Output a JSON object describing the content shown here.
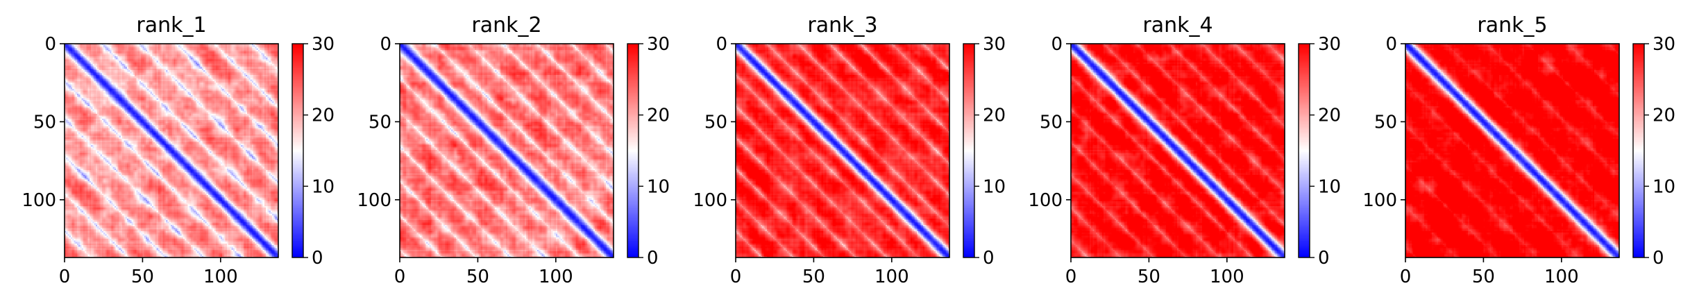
{
  "figure": {
    "background": "#ffffff"
  },
  "chart_data": [
    {
      "type": "heatmap",
      "title": "rank_1",
      "n": 137,
      "x_ticks": [
        0,
        50,
        100
      ],
      "y_ticks": [
        0,
        50,
        100
      ],
      "colorbar": {
        "range": [
          0,
          30
        ],
        "ticks": [
          0,
          10,
          20,
          30
        ],
        "colormap": "bwr"
      },
      "pattern": {
        "diag_width": 3.5,
        "band_spacing": 24,
        "band_strength": 0.55,
        "base": 22,
        "texture": 3.5
      }
    },
    {
      "type": "heatmap",
      "title": "rank_2",
      "n": 137,
      "x_ticks": [
        0,
        50,
        100
      ],
      "y_ticks": [
        0,
        50,
        100
      ],
      "colorbar": {
        "range": [
          0,
          30
        ],
        "ticks": [
          0,
          10,
          20,
          30
        ],
        "colormap": "bwr"
      },
      "pattern": {
        "diag_width": 4,
        "band_spacing": 22,
        "band_strength": 0.5,
        "base": 24,
        "texture": 3.5
      }
    },
    {
      "type": "heatmap",
      "title": "rank_3",
      "n": 137,
      "x_ticks": [
        0,
        50,
        100
      ],
      "y_ticks": [
        0,
        50,
        100
      ],
      "colorbar": {
        "range": [
          0,
          30
        ],
        "ticks": [
          0,
          10,
          20,
          30
        ],
        "colormap": "bwr"
      },
      "pattern": {
        "diag_width": 4,
        "band_spacing": 20,
        "band_strength": 0.45,
        "base": 29,
        "texture": 2.5
      }
    },
    {
      "type": "heatmap",
      "title": "rank_4",
      "n": 137,
      "x_ticks": [
        0,
        50,
        100
      ],
      "y_ticks": [
        0,
        50,
        100
      ],
      "colorbar": {
        "range": [
          0,
          30
        ],
        "ticks": [
          0,
          10,
          20,
          30
        ],
        "colormap": "bwr"
      },
      "pattern": {
        "diag_width": 4,
        "band_spacing": 21,
        "band_strength": 0.35,
        "base": 30,
        "texture": 2.5
      }
    },
    {
      "type": "heatmap",
      "title": "rank_5",
      "n": 137,
      "x_ticks": [
        0,
        50,
        100
      ],
      "y_ticks": [
        0,
        50,
        100
      ],
      "colorbar": {
        "range": [
          0,
          30
        ],
        "ticks": [
          0,
          10,
          20,
          30
        ],
        "colormap": "bwr"
      },
      "pattern": {
        "diag_width": 4,
        "band_spacing": 26,
        "band_strength": 0.22,
        "base": 31,
        "texture": 2.5
      }
    }
  ]
}
